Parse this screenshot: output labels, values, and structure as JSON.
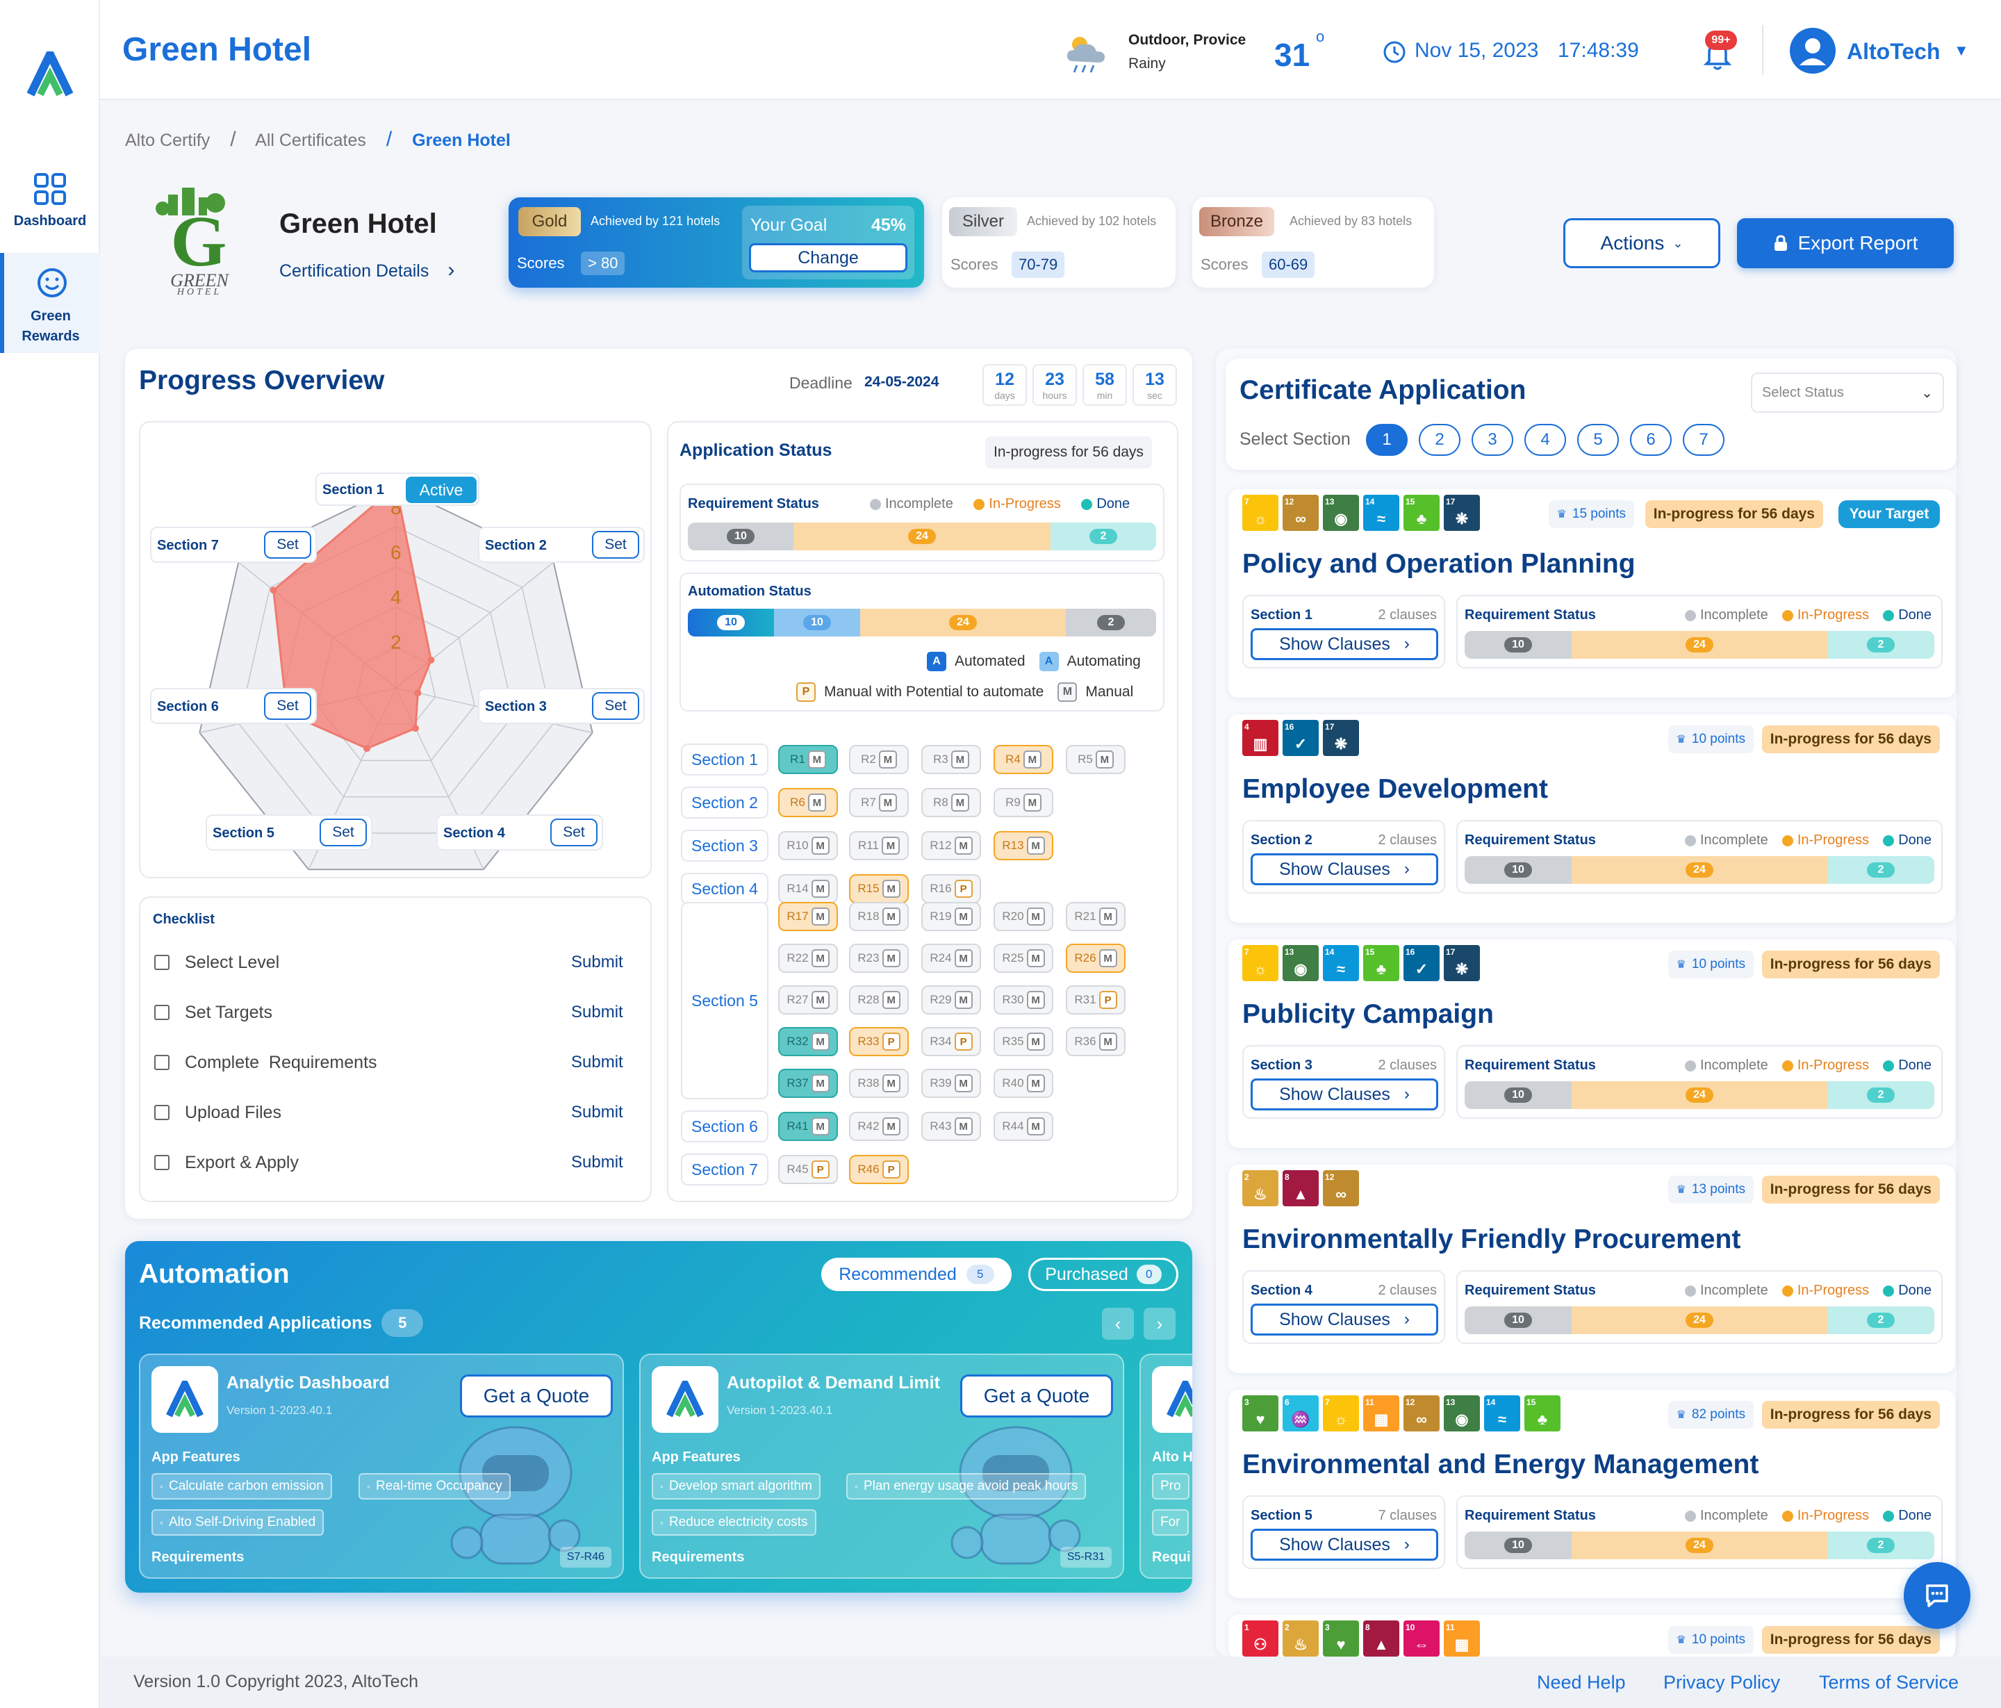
{
  "app": {
    "title": "Green Hotel"
  },
  "sidebar": {
    "items": [
      {
        "label": "Dashboard"
      },
      {
        "label": "Green Rewards"
      }
    ]
  },
  "header": {
    "weather_location": "Outdoor, Provice",
    "weather_condition": "Rainy",
    "temperature": "31",
    "degree": "o",
    "date": "Nov 15, 2023",
    "time": "17:48:39",
    "notifications": "99+",
    "user": "AltoTech"
  },
  "breadcrumb": [
    "Alto Certify",
    "All Certificates",
    "Green Hotel"
  ],
  "breadcrumb_sep": "/",
  "hotel": {
    "name": "Green Hotel",
    "details_link": "Certification Details",
    "chevron": "›",
    "logo_text": "GREEN",
    "logo_sub": "HOTEL"
  },
  "levels": {
    "gold": {
      "name": "Gold",
      "achieved": "Achieved by 121 hotels",
      "scores_label": "Scores",
      "score": "> 80",
      "goal_label": "Your Goal",
      "goal_pct": "45%",
      "change": "Change"
    },
    "silver": {
      "name": "Silver",
      "achieved": "Achieved by 102 hotels",
      "scores_label": "Scores",
      "score": "70-79"
    },
    "bronze": {
      "name": "Bronze",
      "achieved": "Achieved by 83 hotels",
      "scores_label": "Scores",
      "score": "60-69"
    }
  },
  "actions": {
    "actions_label": "Actions",
    "export_label": "Export Report"
  },
  "progress": {
    "title": "Progress Overview",
    "deadline_label": "Deadline",
    "deadline": "24-05-2024",
    "countdown": [
      {
        "v": "12",
        "u": "days"
      },
      {
        "v": "23",
        "u": "hours"
      },
      {
        "v": "58",
        "u": "min"
      },
      {
        "v": "13",
        "u": "sec"
      }
    ],
    "radar": {
      "sections": [
        "Section 1",
        "Section 2",
        "Section 3",
        "Section 4",
        "Section 5",
        "Section 6",
        "Section 7"
      ],
      "active_label": "Active",
      "set_label": "Set",
      "ticks": [
        "8",
        "6",
        "4",
        "2"
      ],
      "max": 9,
      "values": [
        9,
        2,
        1,
        2,
        3,
        5,
        7
      ]
    },
    "checklist": {
      "title": "Checklist",
      "items": [
        "Select Level",
        "Set Targets",
        "Complete  Requirements",
        "Upload Files",
        "Export & Apply"
      ],
      "submit": "Submit"
    }
  },
  "app_status": {
    "title": "Application Status",
    "badge": "In-progress for 56 days",
    "req_title": "Requirement Status",
    "legend": [
      "Incomplete",
      "In-Progress",
      "Done"
    ],
    "req_values": [
      "10",
      "24",
      "2"
    ],
    "auto_title": "Automation Status",
    "auto_values": [
      "10",
      "10",
      "24",
      "2"
    ],
    "auto_legend": [
      {
        "k": "A",
        "label": "Automated"
      },
      {
        "k": "A",
        "label": "Automating"
      },
      {
        "k": "P",
        "label": "Manual with Potential to automate"
      },
      {
        "k": "M",
        "label": "Manual"
      }
    ]
  },
  "sections": [
    {
      "label": "Section 1",
      "reqs": [
        [
          "R1",
          "M",
          "t"
        ],
        [
          "R2",
          "M",
          ""
        ],
        [
          "R3",
          "M",
          ""
        ],
        [
          "R4",
          "M",
          "o"
        ],
        [
          "R5",
          "M",
          ""
        ]
      ]
    },
    {
      "label": "Section 2",
      "reqs": [
        [
          "R6",
          "M",
          "o"
        ],
        [
          "R7",
          "M",
          ""
        ],
        [
          "R8",
          "M",
          ""
        ],
        [
          "R9",
          "M",
          ""
        ]
      ]
    },
    {
      "label": "Section 3",
      "reqs": [
        [
          "R10",
          "M",
          ""
        ],
        [
          "R11",
          "M",
          ""
        ],
        [
          "R12",
          "M",
          ""
        ],
        [
          "R13",
          "M",
          "o"
        ]
      ]
    },
    {
      "label": "Section 4",
      "reqs": [
        [
          "R14",
          "M",
          ""
        ],
        [
          "R15",
          "M",
          "o"
        ],
        [
          "R16",
          "P",
          ""
        ]
      ]
    },
    {
      "label": "Section 5",
      "reqs": [
        [
          "R17",
          "M",
          "o"
        ],
        [
          "R18",
          "M",
          ""
        ],
        [
          "R19",
          "M",
          ""
        ],
        [
          "R20",
          "M",
          ""
        ],
        [
          "R21",
          "M",
          ""
        ],
        [
          "R22",
          "M",
          ""
        ],
        [
          "R23",
          "M",
          ""
        ],
        [
          "R24",
          "M",
          ""
        ],
        [
          "R25",
          "M",
          ""
        ],
        [
          "R26",
          "M",
          "o"
        ],
        [
          "R27",
          "M",
          ""
        ],
        [
          "R28",
          "M",
          ""
        ],
        [
          "R29",
          "M",
          ""
        ],
        [
          "R30",
          "M",
          ""
        ],
        [
          "R31",
          "P",
          ""
        ],
        [
          "R32",
          "M",
          "t"
        ],
        [
          "R33",
          "P",
          "o"
        ],
        [
          "R34",
          "P",
          ""
        ],
        [
          "R35",
          "M",
          ""
        ],
        [
          "R36",
          "M",
          ""
        ],
        [
          "R37",
          "M",
          "t"
        ],
        [
          "R38",
          "M",
          ""
        ],
        [
          "R39",
          "M",
          ""
        ],
        [
          "R40",
          "M",
          ""
        ]
      ]
    },
    {
      "label": "Section 6",
      "reqs": [
        [
          "R41",
          "M",
          "t"
        ],
        [
          "R42",
          "M",
          ""
        ],
        [
          "R43",
          "M",
          ""
        ],
        [
          "R44",
          "M",
          ""
        ]
      ]
    },
    {
      "label": "Section 7",
      "reqs": [
        [
          "R45",
          "P",
          ""
        ],
        [
          "R46",
          "P",
          "o"
        ]
      ]
    }
  ],
  "automation": {
    "title": "Automation",
    "tab_recommended": "Recommended",
    "rec_count": "5",
    "tab_purchased": "Purchased",
    "pur_count": "0",
    "rec_apps_label": "Recommended Applications",
    "rec_apps_count": "5",
    "apps": [
      {
        "name": "Analytic Dashboard",
        "version": "Version 1-2023.40.1",
        "quote": "Get a Quote",
        "features_label": "App Features",
        "features": [
          "Calculate carbon emission",
          "Real-time Occupancy",
          "Alto Self-Driving Enabled"
        ],
        "req_label": "Requirements",
        "req_tag": "S7-R46"
      },
      {
        "name": "Autopilot & Demand Limit",
        "version": "Version 1-2023.40.1",
        "quote": "Get a Quote",
        "features_label": "App Features",
        "features": [
          "Develop smart algorithm",
          "Plan energy usage avoid peak hours",
          "Reduce electricity costs"
        ],
        "req_label": "Requirements",
        "req_tag": "S5-R31"
      },
      {
        "name": "Alto H",
        "features_label": "Alto H",
        "features": [
          "Pro",
          "For"
        ],
        "req_label": "Requi"
      }
    ]
  },
  "cert_app": {
    "title": "Certificate Application",
    "select_status": "Select Status",
    "select_section": "Select Section",
    "sections": [
      "1",
      "2",
      "3",
      "4",
      "5",
      "6",
      "7"
    ],
    "show_clauses": "Show Clauses",
    "req_status": "Requirement Status",
    "legend": [
      "Incomplete",
      "In-Progress",
      "Done"
    ],
    "cards": [
      {
        "title": "Policy and Operation Planning",
        "section": "Section 1",
        "clauses": "2 clauses",
        "points": "15 points",
        "progress": "In-progress for 56 days",
        "target": "Your Target",
        "sdgs": [
          7,
          12,
          13,
          14,
          15,
          17
        ],
        "bar": [
          "10",
          "24",
          "2"
        ]
      },
      {
        "title": "Employee Development",
        "section": "Section 2",
        "clauses": "2 clauses",
        "points": "10 points",
        "progress": "In-progress for 56 days",
        "sdgs": [
          4,
          16,
          17
        ],
        "bar": [
          "10",
          "24",
          "2"
        ]
      },
      {
        "title": "Publicity Campaign",
        "section": "Section 3",
        "clauses": "2 clauses",
        "points": "10 points",
        "progress": "In-progress for 56 days",
        "sdgs": [
          7,
          13,
          14,
          15,
          16,
          17
        ],
        "bar": [
          "10",
          "24",
          "2"
        ]
      },
      {
        "title": "Environmentally Friendly Procurement",
        "section": "Section 4",
        "clauses": "2 clauses",
        "points": "13 points",
        "progress": "In-progress for 56 days",
        "sdgs": [
          2,
          8,
          12
        ],
        "bar": [
          "10",
          "24",
          "2"
        ]
      },
      {
        "title": "Environmental and Energy Management",
        "section": "Section 5",
        "clauses": "7 clauses",
        "points": "82 points",
        "progress": "In-progress for 56 days",
        "sdgs": [
          3,
          6,
          7,
          11,
          12,
          13,
          14,
          15
        ],
        "bar": [
          "10",
          "24",
          "2"
        ]
      },
      {
        "points": "10 points",
        "progress": "In-progress for 56 days",
        "sdgs": [
          1,
          2,
          3,
          8,
          10,
          11
        ]
      }
    ]
  },
  "footer": {
    "copyright": "Version 1.0 Copyright 2023, AltoTech",
    "links": [
      "Need Help",
      "Privacy Policy",
      "Terms of Service"
    ]
  },
  "colors": {
    "accent": "#1a6fd8",
    "navy": "#0b3f86",
    "incomplete": "#bfc4cb",
    "in_progress": "#f5a623",
    "done": "#1fbfb8"
  }
}
